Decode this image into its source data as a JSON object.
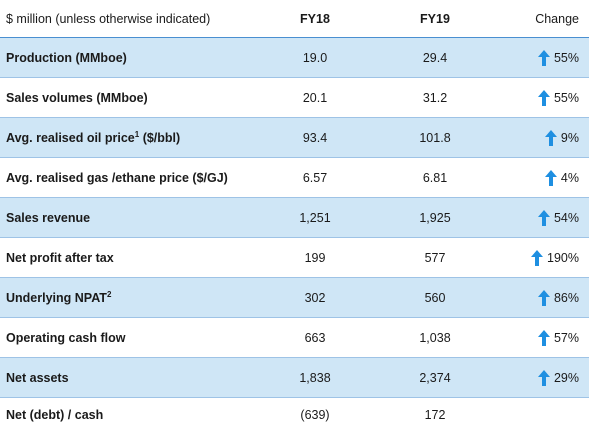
{
  "header": {
    "label": "$ million (unless otherwise indicated)",
    "fy18": "FY18",
    "fy19": "FY19",
    "change": "Change"
  },
  "rows": [
    {
      "label": "Production (MMboe)",
      "sup": "",
      "fy18": "19.0",
      "fy19": "29.4",
      "change": "55%",
      "arrow": "up"
    },
    {
      "label": "Sales volumes (MMboe)",
      "sup": "",
      "fy18": "20.1",
      "fy19": "31.2",
      "change": "55%",
      "arrow": "up"
    },
    {
      "label": "Avg. realised oil price",
      "sup": "1",
      "label_suffix": " ($/bbl)",
      "fy18": "93.4",
      "fy19": "101.8",
      "change": "9%",
      "arrow": "up"
    },
    {
      "label": "Avg. realised gas /ethane price ($/GJ)",
      "sup": "",
      "fy18": "6.57",
      "fy19": "6.81",
      "change": "4%",
      "arrow": "up"
    },
    {
      "label": "Sales revenue",
      "sup": "",
      "fy18": "1,251",
      "fy19": "1,925",
      "change": "54%",
      "arrow": "up"
    },
    {
      "label": "Net profit after tax",
      "sup": "",
      "fy18": "199",
      "fy19": "577",
      "change": "190%",
      "arrow": "up"
    },
    {
      "label": "Underlying NPAT",
      "sup": "2",
      "fy18": "302",
      "fy19": "560",
      "change": "86%",
      "arrow": "up"
    },
    {
      "label": "Operating cash flow",
      "sup": "",
      "fy18": "663",
      "fy19": "1,038",
      "change": "57%",
      "arrow": "up"
    },
    {
      "label": "Net assets",
      "sup": "",
      "fy18": "1,838",
      "fy19": "2,374",
      "change": "29%",
      "arrow": "up"
    },
    {
      "label": "Net (debt) / cash",
      "sup": "",
      "fy18": "(639)",
      "fy19": "172",
      "change": "",
      "arrow": ""
    }
  ],
  "colors": {
    "arrow": "#1e8fe1",
    "shade": "#cfe6f6"
  }
}
